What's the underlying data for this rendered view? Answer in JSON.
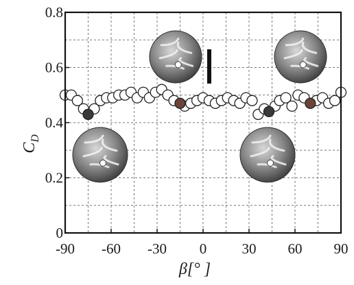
{
  "chart_data": {
    "type": "scatter",
    "xlabel": "β[° ]",
    "ylabel": "C_D",
    "ylabel_main": "C",
    "ylabel_sub": "D",
    "xlim": [
      -90,
      90
    ],
    "ylim": [
      0,
      0.8
    ],
    "x_ticks": [
      -90,
      -60,
      -30,
      0,
      30,
      60,
      90
    ],
    "x_tick_labels": [
      "-90",
      "-60",
      "-30",
      "0",
      "30",
      "60",
      "90"
    ],
    "y_ticks": [
      0,
      0.2,
      0.4,
      0.6,
      0.8
    ],
    "y_tick_labels": [
      "0",
      "0.2",
      "0.4",
      "0.6",
      "0.8"
    ],
    "x_minor_grid": [
      -75,
      -45,
      -15,
      15,
      45,
      75
    ],
    "y_minor_grid": [
      0.1,
      0.3,
      0.5,
      0.7
    ],
    "grid": true,
    "series": [
      {
        "marker": "open-circle",
        "points": [
          [
            -90,
            0.5
          ],
          [
            -86,
            0.5
          ],
          [
            -82,
            0.48
          ],
          [
            -78,
            0.45
          ],
          [
            -71,
            0.45
          ],
          [
            -67,
            0.48
          ],
          [
            -63,
            0.49
          ],
          [
            -59,
            0.49
          ],
          [
            -55,
            0.5
          ],
          [
            -51,
            0.5
          ],
          [
            -47,
            0.51
          ],
          [
            -43,
            0.49
          ],
          [
            -39,
            0.51
          ],
          [
            -35,
            0.49
          ],
          [
            -31,
            0.51
          ],
          [
            -27,
            0.52
          ],
          [
            -23,
            0.5
          ],
          [
            -19,
            0.48
          ],
          [
            -12,
            0.46
          ],
          [
            -8,
            0.47
          ],
          [
            -4,
            0.48
          ],
          [
            0,
            0.49
          ],
          [
            4,
            0.48
          ],
          [
            8,
            0.47
          ],
          [
            12,
            0.48
          ],
          [
            16,
            0.49
          ],
          [
            20,
            0.48
          ],
          [
            24,
            0.47
          ],
          [
            28,
            0.49
          ],
          [
            32,
            0.48
          ],
          [
            36,
            0.43
          ],
          [
            40,
            0.45
          ],
          [
            47,
            0.46
          ],
          [
            50,
            0.48
          ],
          [
            54,
            0.49
          ],
          [
            58,
            0.46
          ],
          [
            62,
            0.5
          ],
          [
            66,
            0.49
          ],
          [
            74,
            0.48
          ],
          [
            78,
            0.49
          ],
          [
            82,
            0.47
          ],
          [
            86,
            0.48
          ],
          [
            90,
            0.51
          ]
        ]
      },
      {
        "marker": "filled-circle",
        "points": [
          [
            -75,
            0.43,
            "#3a3a3a"
          ],
          [
            -15,
            0.47,
            "#6a4438"
          ],
          [
            43,
            0.44,
            "#3a3a3a"
          ],
          [
            70,
            0.47,
            "#6a4438"
          ]
        ]
      }
    ],
    "insets": [
      "ball-image",
      "ball-image",
      "ball-image",
      "ball-image"
    ]
  }
}
